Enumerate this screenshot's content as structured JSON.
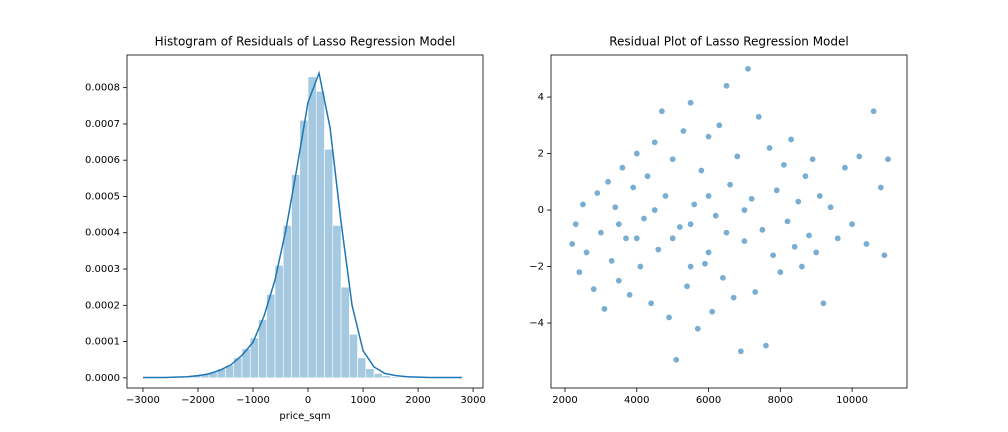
{
  "chart_data": [
    {
      "type": "histogram",
      "title": "Histogram of Residuals of Lasso Regression Model",
      "x_label": "price_sqm",
      "bins": [
        -3000,
        -2850,
        -2700,
        -2550,
        -2400,
        -2250,
        -2100,
        -1950,
        -1800,
        -1650,
        -1500,
        -1350,
        -1200,
        -1050,
        -900,
        -750,
        -600,
        -450,
        -300,
        -150,
        0,
        150,
        300,
        450,
        600,
        750,
        900,
        1050,
        1200,
        1350,
        1500,
        1650,
        1800,
        1950,
        2100,
        2250,
        2400,
        2550,
        2700,
        2850
      ],
      "values": [
        5e-07,
        5e-07,
        1e-06,
        1e-06,
        2e-06,
        4e-06,
        6e-06,
        1e-05,
        1.5e-05,
        2.5e-05,
        3.5e-05,
        5.5e-05,
        8e-05,
        0.00011,
        0.00016,
        0.00023,
        0.00031,
        0.00042,
        0.00056,
        0.00071,
        0.00083,
        0.00079,
        0.00063,
        0.00042,
        0.00025,
        0.00012,
        5.5e-05,
        2.5e-05,
        1.2e-05,
        6e-06,
        3e-06,
        2e-06,
        1e-06,
        1e-06,
        5e-07,
        5e-07,
        3e-07,
        2e-07,
        2e-07
      ],
      "color": "#1f77b4",
      "kde": {
        "x": [
          -3000,
          -2800,
          -2600,
          -2400,
          -2200,
          -2000,
          -1800,
          -1600,
          -1400,
          -1200,
          -1000,
          -800,
          -600,
          -400,
          -200,
          0,
          200,
          400,
          600,
          800,
          1000,
          1200,
          1400,
          1600,
          1800,
          2000,
          2200,
          2400,
          2600,
          2800
        ],
        "values": [
          1e-06,
          1e-06,
          1e-06,
          2e-06,
          3e-06,
          6e-06,
          1.1e-05,
          2.1e-05,
          3.6e-05,
          6.2e-05,
          9.8e-05,
          0.00017,
          0.00027,
          0.00041,
          0.00058,
          0.00076,
          0.00084,
          0.00069,
          0.00043,
          0.0002,
          7.5e-05,
          3e-05,
          1.2e-05,
          6e-06,
          3e-06,
          2e-06,
          1e-06,
          1e-06,
          1e-06,
          1e-06
        ]
      },
      "xlim": [
        -3290,
        3180
      ],
      "xticks": [
        {
          "value": -3000,
          "label": "−3000"
        },
        {
          "value": -2000,
          "label": "−2000"
        },
        {
          "value": -1000,
          "label": "−1000"
        },
        0,
        1000,
        2000,
        3000
      ],
      "ylim": [
        -2.8e-05,
        0.00089
      ],
      "yticks": [
        {
          "value": 0,
          "label": "0.0000"
        },
        0.0001,
        0.0002,
        0.0003,
        0.0004,
        0.0005,
        0.0006,
        0.0007,
        0.0008
      ]
    },
    {
      "type": "scatter",
      "title": "Residual Plot of Lasso Regression Model",
      "color": "#1f77b4",
      "x": [
        2200,
        2300,
        2400,
        2500,
        2600,
        2800,
        2900,
        3000,
        3100,
        3200,
        3300,
        3400,
        3500,
        3600,
        3700,
        3800,
        3900,
        4000,
        4100,
        4200,
        4300,
        4400,
        4500,
        4600,
        4700,
        4800,
        4900,
        5000,
        5100,
        5200,
        5300,
        5400,
        5500,
        5600,
        5700,
        5800,
        5900,
        6000,
        6100,
        6200,
        6300,
        6400,
        6500,
        6600,
        6700,
        6800,
        6900,
        7000,
        7100,
        7200,
        7300,
        7400,
        7500,
        7600,
        7700,
        7800,
        7900,
        8000,
        8100,
        8200,
        8300,
        8400,
        8500,
        8600,
        8700,
        8800,
        8900,
        9000,
        9100,
        9200,
        9400,
        9600,
        9800,
        10000,
        10200,
        10400,
        10600,
        10800,
        10900,
        11000,
        4500,
        5000,
        5500,
        6000,
        6500,
        7000,
        5500,
        4000,
        3500,
        6000
      ],
      "values": [
        -1.2,
        -0.5,
        -2.2,
        0.2,
        -1.5,
        -2.8,
        0.6,
        -0.8,
        -3.5,
        1.0,
        -1.8,
        0.1,
        -2.5,
        1.5,
        -1.0,
        -3.0,
        0.8,
        2.0,
        -2.0,
        -0.3,
        1.2,
        -3.3,
        2.4,
        -1.4,
        3.5,
        0.5,
        -3.8,
        1.8,
        -5.3,
        -0.6,
        2.8,
        -2.7,
        3.8,
        0.2,
        -4.2,
        1.4,
        -1.9,
        2.6,
        -3.6,
        -0.2,
        3.0,
        -2.4,
        4.4,
        0.9,
        -3.1,
        1.9,
        -5.0,
        -1.1,
        5.0,
        0.4,
        -2.9,
        3.3,
        -0.7,
        -4.8,
        2.2,
        -1.6,
        0.7,
        -2.2,
        1.6,
        -0.4,
        2.5,
        -1.3,
        0.3,
        -2.0,
        1.2,
        -0.9,
        1.8,
        -1.5,
        0.5,
        -3.3,
        0.1,
        -1.0,
        1.5,
        -0.5,
        1.9,
        -1.2,
        3.5,
        0.8,
        -1.6,
        1.8,
        0.0,
        -1.0,
        -0.5,
        -1.5,
        -0.8,
        0.0,
        -2.0,
        -1.0,
        -0.5,
        0.5
      ],
      "xlim": [
        1610,
        11530
      ],
      "xticks": [
        2000,
        4000,
        6000,
        8000,
        10000
      ],
      "ylim": [
        -6.3,
        5.49
      ],
      "yticks": [
        {
          "value": -4,
          "label": "−4"
        },
        {
          "value": -2,
          "label": "−2"
        },
        0,
        2,
        4
      ]
    }
  ]
}
